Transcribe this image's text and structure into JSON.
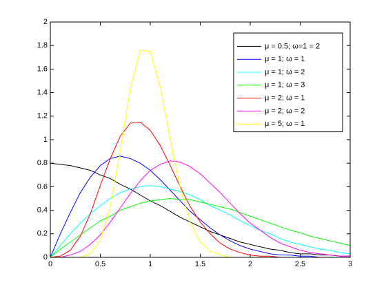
{
  "chart_data": {
    "type": "line",
    "x": [
      0,
      0.1,
      0.2,
      0.3,
      0.4,
      0.5,
      0.6,
      0.7,
      0.8,
      0.9,
      1,
      1.1,
      1.2,
      1.3,
      1.4,
      1.5,
      1.6,
      1.7,
      1.8,
      1.9,
      2,
      2.1,
      2.2,
      2.3,
      2.4,
      2.5,
      2.6,
      2.7,
      2.8,
      2.9,
      3
    ],
    "series": [
      {
        "name": "μ = 0.5; ω=1 = 2",
        "color": "#000000",
        "values": [
          0.8,
          0.79,
          0.78,
          0.76,
          0.74,
          0.7,
          0.67,
          0.62,
          0.58,
          0.53,
          0.48,
          0.44,
          0.39,
          0.34,
          0.3,
          0.26,
          0.22,
          0.19,
          0.16,
          0.13,
          0.11,
          0.09,
          0.07,
          0.06,
          0.04,
          0.03,
          0.03,
          0.02,
          0.02,
          0.01,
          0.01
        ]
      },
      {
        "name": "μ = 1; ω = 1",
        "color": "#0000ff",
        "values": [
          0,
          0.2,
          0.38,
          0.55,
          0.68,
          0.78,
          0.84,
          0.86,
          0.84,
          0.8,
          0.74,
          0.66,
          0.57,
          0.48,
          0.39,
          0.32,
          0.25,
          0.19,
          0.14,
          0.1,
          0.07,
          0.05,
          0.03,
          0.02,
          0.02,
          0.01,
          0.01,
          0,
          0,
          0,
          0
        ]
      },
      {
        "name": "μ = 1; ω = 2",
        "color": "#00ffff",
        "values": [
          0,
          0.1,
          0.2,
          0.29,
          0.37,
          0.44,
          0.5,
          0.55,
          0.58,
          0.6,
          0.61,
          0.6,
          0.58,
          0.56,
          0.53,
          0.49,
          0.44,
          0.4,
          0.36,
          0.31,
          0.27,
          0.23,
          0.2,
          0.16,
          0.13,
          0.11,
          0.09,
          0.07,
          0.06,
          0.04,
          0.03
        ]
      },
      {
        "name": "μ = 1; ω = 3",
        "color": "#00ff00",
        "values": [
          0,
          0.07,
          0.13,
          0.19,
          0.25,
          0.31,
          0.35,
          0.4,
          0.43,
          0.46,
          0.48,
          0.49,
          0.5,
          0.49,
          0.49,
          0.47,
          0.45,
          0.43,
          0.41,
          0.38,
          0.35,
          0.32,
          0.29,
          0.26,
          0.23,
          0.21,
          0.18,
          0.16,
          0.14,
          0.12,
          0.1
        ]
      },
      {
        "name": "μ = 2; ω = 1",
        "color": "#ff0000",
        "values": [
          0,
          0.01,
          0.06,
          0.18,
          0.37,
          0.61,
          0.84,
          1.03,
          1.14,
          1.15,
          1.08,
          0.95,
          0.78,
          0.6,
          0.43,
          0.3,
          0.2,
          0.12,
          0.07,
          0.04,
          0.02,
          0.01,
          0.01,
          0,
          0,
          0,
          0,
          0,
          0,
          0,
          0
        ]
      },
      {
        "name": "μ = 2; ω = 2",
        "color": "#ff00ff",
        "values": [
          0,
          0,
          0.02,
          0.05,
          0.11,
          0.19,
          0.3,
          0.42,
          0.54,
          0.65,
          0.74,
          0.79,
          0.82,
          0.81,
          0.77,
          0.71,
          0.63,
          0.55,
          0.46,
          0.37,
          0.29,
          0.23,
          0.17,
          0.12,
          0.09,
          0.06,
          0.04,
          0.03,
          0.02,
          0.01,
          0.01
        ]
      },
      {
        "name": "μ = 5; ω = 1",
        "color": "#ffff00",
        "values": [
          0,
          0,
          0,
          0,
          0.03,
          0.15,
          0.43,
          0.91,
          1.43,
          1.76,
          1.75,
          1.45,
          1.0,
          0.59,
          0.3,
          0.13,
          0.05,
          0.02,
          0,
          0,
          0,
          0,
          0,
          0,
          0,
          0,
          0,
          0,
          0,
          0,
          0
        ]
      }
    ],
    "xlim": [
      0,
      3
    ],
    "ylim": [
      0,
      2
    ],
    "xticks": [
      0,
      0.5,
      1,
      1.5,
      2,
      2.5,
      3
    ],
    "yticks": [
      0,
      0.2,
      0.4,
      0.6,
      0.8,
      1,
      1.2,
      1.4,
      1.6,
      1.8,
      2
    ],
    "legend": "upper right"
  }
}
